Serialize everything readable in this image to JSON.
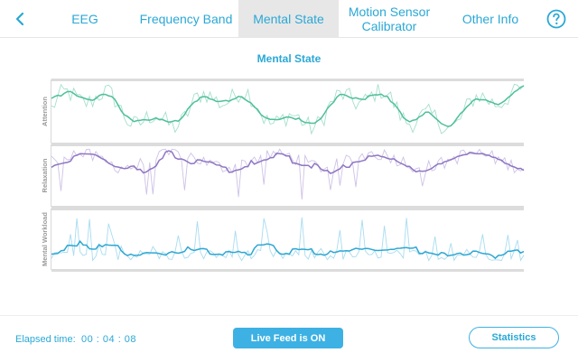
{
  "nav": {
    "back_icon": "chevron-left-icon",
    "tabs": [
      {
        "label": "EEG",
        "active": false
      },
      {
        "label": "Frequency Band",
        "active": false
      },
      {
        "label": "Mental State",
        "active": true
      },
      {
        "label": "Motion Sensor\nCalibrator",
        "active": false
      },
      {
        "label": "Other Info",
        "active": false
      }
    ],
    "help_icon": "question-circle-icon"
  },
  "main": {
    "title": "Mental State"
  },
  "chart_data": {
    "type": "line",
    "title": "Mental State",
    "panels": [
      {
        "name": "Attention",
        "color": "#4fbf9a",
        "raw_color": "#a6e0cc"
      },
      {
        "name": "Relaxation",
        "color": "#8f76c4",
        "raw_color": "#cfc2e6"
      },
      {
        "name": "Mental Workload",
        "color": "#2ea7d2",
        "raw_color": "#a8dcf0"
      }
    ],
    "grid": false
  },
  "footer": {
    "elapsed_label": "Elapsed time:",
    "elapsed_value": "00 : 04 : 08",
    "live_feed_label": "Live Feed is ON",
    "statistics_label": "Statistics"
  },
  "colors": {
    "accent": "#2aa8d6",
    "button_fill": "#3db1e3",
    "active_tab_bg": "#e7e7e7"
  }
}
